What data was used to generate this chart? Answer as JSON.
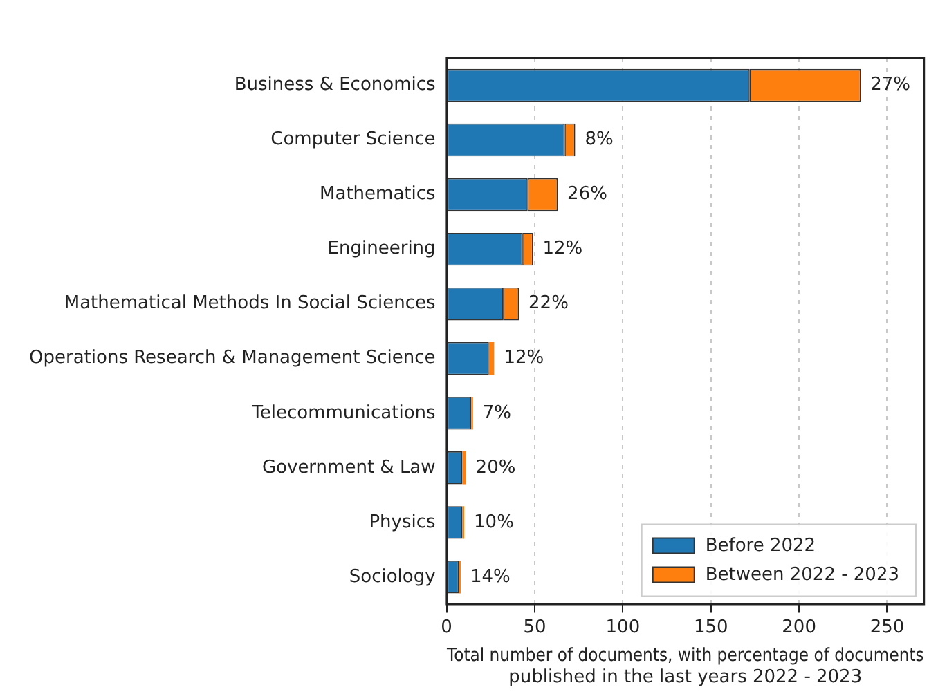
{
  "chart_data": {
    "type": "bar",
    "orientation": "horizontal",
    "stacked": true,
    "categories": [
      "Business & Economics",
      "Computer Science",
      "Mathematics",
      "Engineering",
      "Mathematical Methods In Social Sciences",
      "Operations Research & Management Science",
      "Telecommunications",
      "Government & Law",
      "Physics",
      "Sociology"
    ],
    "series": [
      {
        "name": "Before 2022",
        "color": "#1f77b4",
        "values": [
          172,
          67,
          46,
          43,
          32,
          24,
          14,
          9,
          9,
          7
        ]
      },
      {
        "name": "Between 2022 - 2023",
        "color": "#ff7f0e",
        "values": [
          63,
          6,
          17,
          6,
          9,
          3,
          1,
          2,
          1,
          1
        ]
      }
    ],
    "xlabel": "Total number of documents, with percentage of documents published in the last years 2022 - 2023",
    "xlim": [
      0,
      271
    ],
    "xticks": [
      0,
      50,
      100,
      150,
      200,
      250
    ],
    "grid": "x",
    "legend": "bottom right",
    "annotations": [
      {
        "text": "27%",
        "x": 235,
        "y": "Business & Economics"
      },
      {
        "text": "8%",
        "x": 73,
        "y": "Computer Science"
      },
      {
        "text": "26%",
        "x": 63,
        "y": "Mathematics"
      },
      {
        "text": "12%",
        "x": 49,
        "y": "Engineering"
      },
      {
        "text": "22%",
        "x": 41,
        "y": "Mathematical Methods In Social Sciences"
      },
      {
        "text": "12%",
        "x": 27,
        "y": "Operations Research & Management Science"
      },
      {
        "text": "7%",
        "x": 15,
        "y": "Telecommunications"
      },
      {
        "text": "20%",
        "x": 11,
        "y": "Government & Law"
      },
      {
        "text": "10%",
        "x": 10,
        "y": "Physics"
      },
      {
        "text": "14%",
        "x": 8,
        "y": "Sociology"
      }
    ]
  }
}
